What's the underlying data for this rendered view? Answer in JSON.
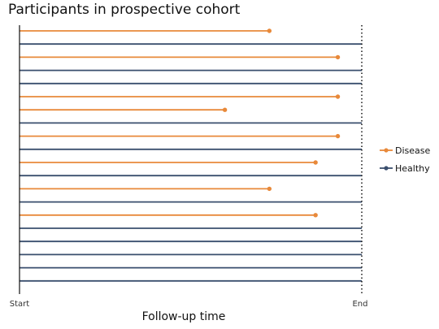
{
  "chart_data": {
    "type": "line",
    "title": "Participants in prospective cohort",
    "xlabel": "Follow-up time",
    "ylabel": "",
    "xlim": [
      0,
      1
    ],
    "x_tick_labels": [
      {
        "value": 0,
        "label": "Start"
      },
      {
        "value": 1,
        "label": "End"
      }
    ],
    "end_line": {
      "value": 1,
      "style": "dotted"
    },
    "grid": false,
    "legend_position": "right",
    "series": [
      {
        "name": "Disease",
        "color": "#e8893a"
      },
      {
        "name": "Healthy",
        "color": "#3a4f6e"
      }
    ],
    "participants": [
      {
        "status": "Disease",
        "end": 0.73
      },
      {
        "status": "Healthy",
        "end": 1.0
      },
      {
        "status": "Disease",
        "end": 0.93
      },
      {
        "status": "Healthy",
        "end": 1.0
      },
      {
        "status": "Healthy",
        "end": 1.0
      },
      {
        "status": "Disease",
        "end": 0.93
      },
      {
        "status": "Disease",
        "end": 0.6
      },
      {
        "status": "Healthy",
        "end": 1.0
      },
      {
        "status": "Disease",
        "end": 0.93
      },
      {
        "status": "Healthy",
        "end": 1.0
      },
      {
        "status": "Disease",
        "end": 0.865
      },
      {
        "status": "Healthy",
        "end": 1.0
      },
      {
        "status": "Disease",
        "end": 0.73
      },
      {
        "status": "Healthy",
        "end": 1.0
      },
      {
        "status": "Disease",
        "end": 0.865
      },
      {
        "status": "Healthy",
        "end": 1.0
      },
      {
        "status": "Healthy",
        "end": 1.0
      },
      {
        "status": "Healthy",
        "end": 1.0
      },
      {
        "status": "Healthy",
        "end": 1.0
      },
      {
        "status": "Healthy",
        "end": 1.0
      }
    ]
  }
}
